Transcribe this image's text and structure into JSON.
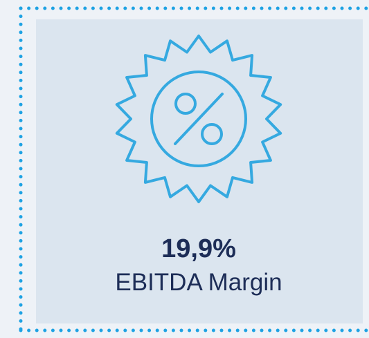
{
  "kpi": {
    "value": "19,9%",
    "label": "EBITDA Margin"
  }
}
